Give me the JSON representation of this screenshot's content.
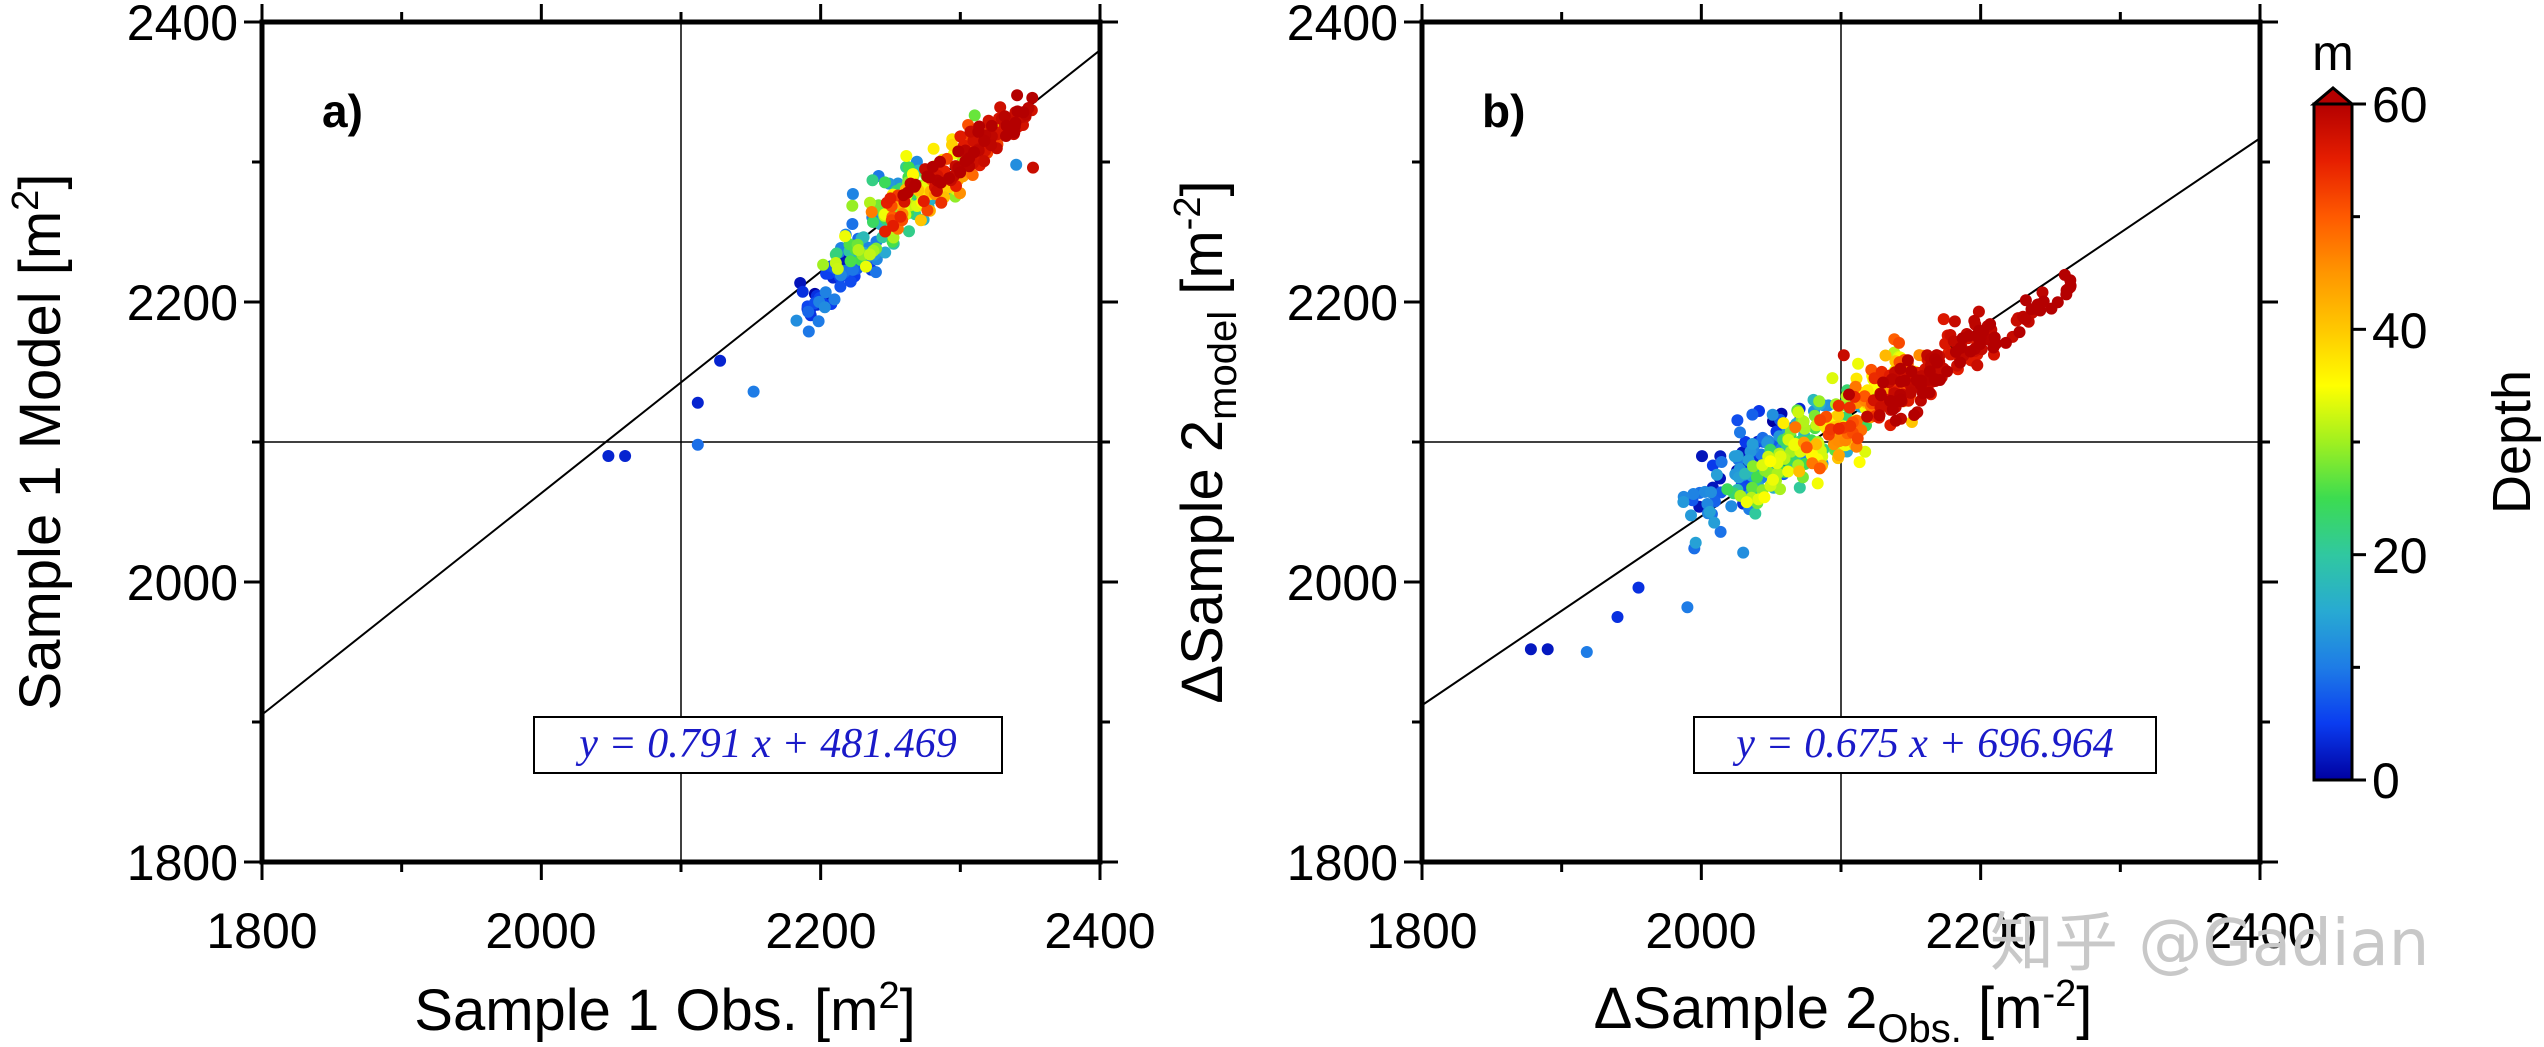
{
  "chart_data": [
    {
      "type": "scatter",
      "panel_label": "a)",
      "xlabel": {
        "main": "Sample 1 Obs. [m",
        "sup": "2",
        "end": "]"
      },
      "ylabel": {
        "main": "Sample 1 Model [m",
        "sup": "2",
        "end": "]"
      },
      "xlim": [
        1800,
        2400
      ],
      "ylim": [
        1800,
        2400
      ],
      "xticks": [
        "1800",
        "2000",
        "2200",
        "2400"
      ],
      "yticks": [
        "1800",
        "2000",
        "2200",
        "2400"
      ],
      "reference_lines": {
        "x": 2100,
        "y": 2100
      },
      "fit": {
        "slope": 0.791,
        "intercept": 481.469,
        "equation": "y = 0.791 x + 481.469"
      },
      "color_by": "Depth (m)",
      "outliers": [
        {
          "x": 2048,
          "y": 2090,
          "depth": 3
        },
        {
          "x": 2060,
          "y": 2090,
          "depth": 3
        },
        {
          "x": 2112,
          "y": 2128,
          "depth": 3
        },
        {
          "x": 2112,
          "y": 2098,
          "depth": 9
        },
        {
          "x": 2128,
          "y": 2158,
          "depth": 3
        },
        {
          "x": 2152,
          "y": 2136,
          "depth": 10
        },
        {
          "x": 2352,
          "y": 2296,
          "depth": 58
        },
        {
          "x": 2340,
          "y": 2298,
          "depth": 12
        }
      ],
      "clusters": [
        {
          "x": [
            2185,
            2235
          ],
          "y": [
            2185,
            2245
          ],
          "depth": [
            0,
            12
          ],
          "count": 50,
          "spread": 7
        },
        {
          "x": [
            2215,
            2275
          ],
          "y": [
            2225,
            2290
          ],
          "depth": [
            8,
            35
          ],
          "count": 90,
          "spread": 9
        },
        {
          "x": [
            2245,
            2320
          ],
          "y": [
            2255,
            2320
          ],
          "depth": [
            25,
            58
          ],
          "count": 120,
          "spread": 8
        },
        {
          "x": [
            2270,
            2350
          ],
          "y": [
            2280,
            2340
          ],
          "depth": [
            55,
            62
          ],
          "count": 90,
          "spread": 6
        }
      ]
    },
    {
      "type": "scatter",
      "panel_label": "b)",
      "xlabel": {
        "main": "ΔSample 2",
        "sub": "Obs.",
        "end": " [m",
        "sup": "-2",
        "tail": "]"
      },
      "ylabel": {
        "main": "ΔSample 2",
        "sub": "model",
        "end": " [m",
        "sup": "-2",
        "tail": "]"
      },
      "xlim": [
        1800,
        2400
      ],
      "ylim": [
        1800,
        2400
      ],
      "xticks": [
        "1800",
        "2000",
        "2200",
        "2400"
      ],
      "yticks": [
        "1800",
        "2000",
        "2200",
        "2400"
      ],
      "reference_lines": {
        "x": 2100,
        "y": 2100
      },
      "fit": {
        "slope": 0.675,
        "intercept": 696.964,
        "equation": "y = 0.675 x + 696.964"
      },
      "color_by": "Depth (m)",
      "outliers": [
        {
          "x": 1878,
          "y": 1952,
          "depth": 2
        },
        {
          "x": 1890,
          "y": 1952,
          "depth": 2
        },
        {
          "x": 1918,
          "y": 1950,
          "depth": 10
        },
        {
          "x": 1940,
          "y": 1975,
          "depth": 4
        },
        {
          "x": 1955,
          "y": 1996,
          "depth": 4
        },
        {
          "x": 1990,
          "y": 1982,
          "depth": 10
        },
        {
          "x": 1995,
          "y": 2024,
          "depth": 9
        },
        {
          "x": 1996,
          "y": 2028,
          "depth": 14
        },
        {
          "x": 2030,
          "y": 2021,
          "depth": 12
        },
        {
          "x": 2102,
          "y": 2162,
          "depth": 58
        }
      ],
      "clusters": [
        {
          "x": [
            2000,
            2060
          ],
          "y": [
            2050,
            2110
          ],
          "depth": [
            0,
            14
          ],
          "count": 90,
          "spread": 10
        },
        {
          "x": [
            2030,
            2110
          ],
          "y": [
            2060,
            2130
          ],
          "depth": [
            10,
            35
          ],
          "count": 130,
          "spread": 11
        },
        {
          "x": [
            2080,
            2150
          ],
          "y": [
            2090,
            2160
          ],
          "depth": [
            30,
            55
          ],
          "count": 130,
          "spread": 10
        },
        {
          "x": [
            2130,
            2200
          ],
          "y": [
            2125,
            2175
          ],
          "depth": [
            55,
            62
          ],
          "count": 130,
          "spread": 8
        },
        {
          "x": [
            2200,
            2265
          ],
          "y": [
            2170,
            2215
          ],
          "depth": [
            58,
            62
          ],
          "count": 35,
          "spread": 5
        }
      ]
    }
  ],
  "colorbar": {
    "title": "Depth",
    "unit": "m",
    "min": 0,
    "max": 60,
    "ticks": [
      "0",
      "20",
      "40",
      "60"
    ],
    "colors": [
      "#0000a0",
      "#0a3cf0",
      "#1e7ce6",
      "#28aad2",
      "#30c8a0",
      "#3cdc50",
      "#a0f020",
      "#ffff00",
      "#ffc800",
      "#ff9600",
      "#ff5a00",
      "#e61e00",
      "#b40000"
    ]
  },
  "watermark": "知乎 @Gadian"
}
